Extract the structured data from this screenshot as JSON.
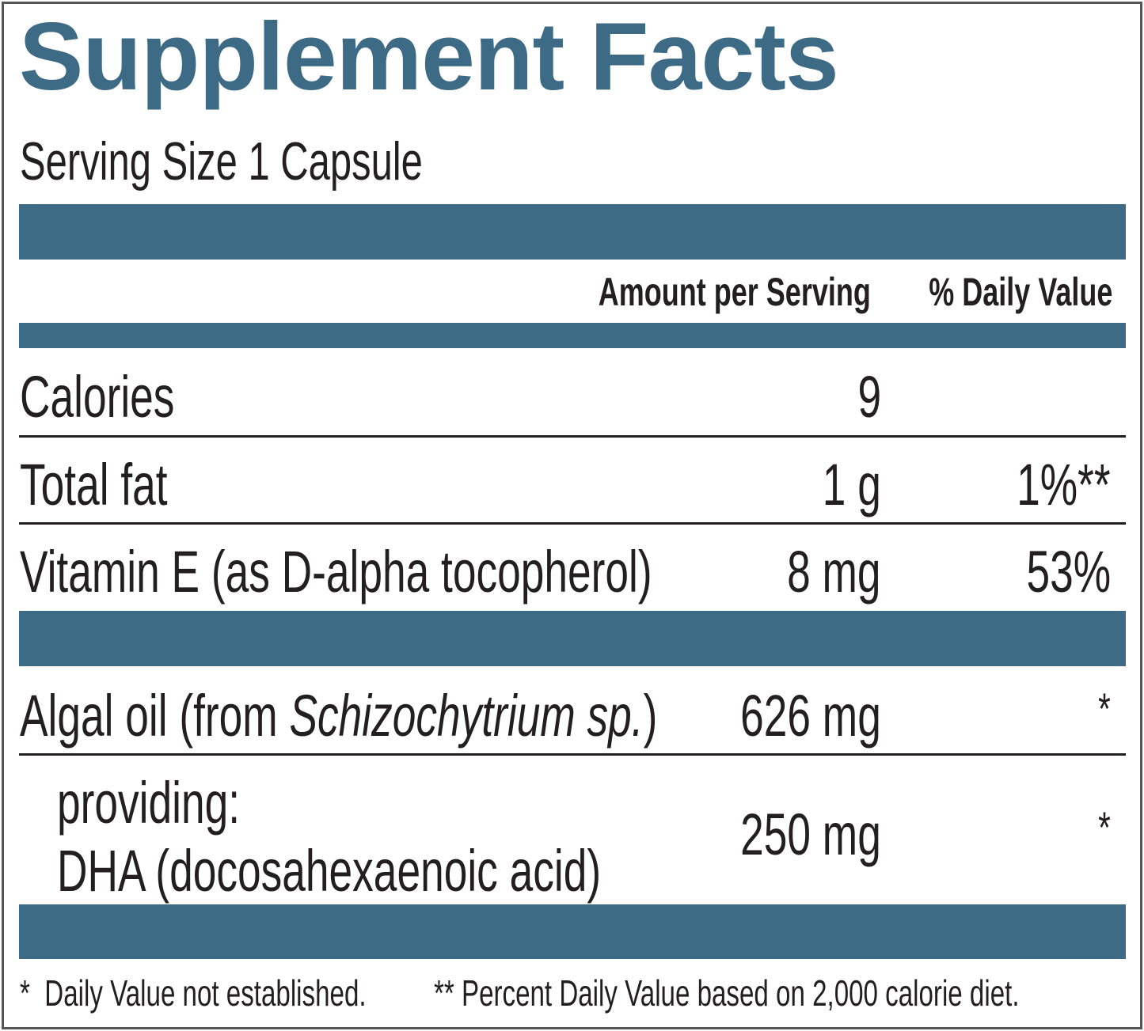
{
  "title": "Supplement Facts",
  "serving_size": "Serving Size 1 Capsule",
  "table": {
    "header": {
      "amount": "Amount per Serving",
      "daily_value": "% Daily Value"
    },
    "rows": [
      {
        "name": "Calories",
        "amount": "9"
      },
      {
        "name": "Total fat",
        "amount": "1 g",
        "daily_value": "1%**"
      },
      {
        "name": "Vitamin E (as D-alpha tocopherol)",
        "amount": "8 mg",
        "daily_value": "53%"
      }
    ],
    "rows_2": [
      {
        "name_parts": [
          "Algal oil (from ",
          "Schizochytrium sp.",
          ")"
        ],
        "amount": "626 mg",
        "daily_value": "*"
      },
      {
        "name_lines": [
          "providing:",
          "DHA (docosahexaenoic acid)"
        ],
        "amount": "250 mg",
        "daily_value": "*"
      }
    ]
  },
  "footnotes": [
    "*  Daily Value not established.",
    "** Percent Daily Value based on 2,000 calorie diet."
  ]
}
